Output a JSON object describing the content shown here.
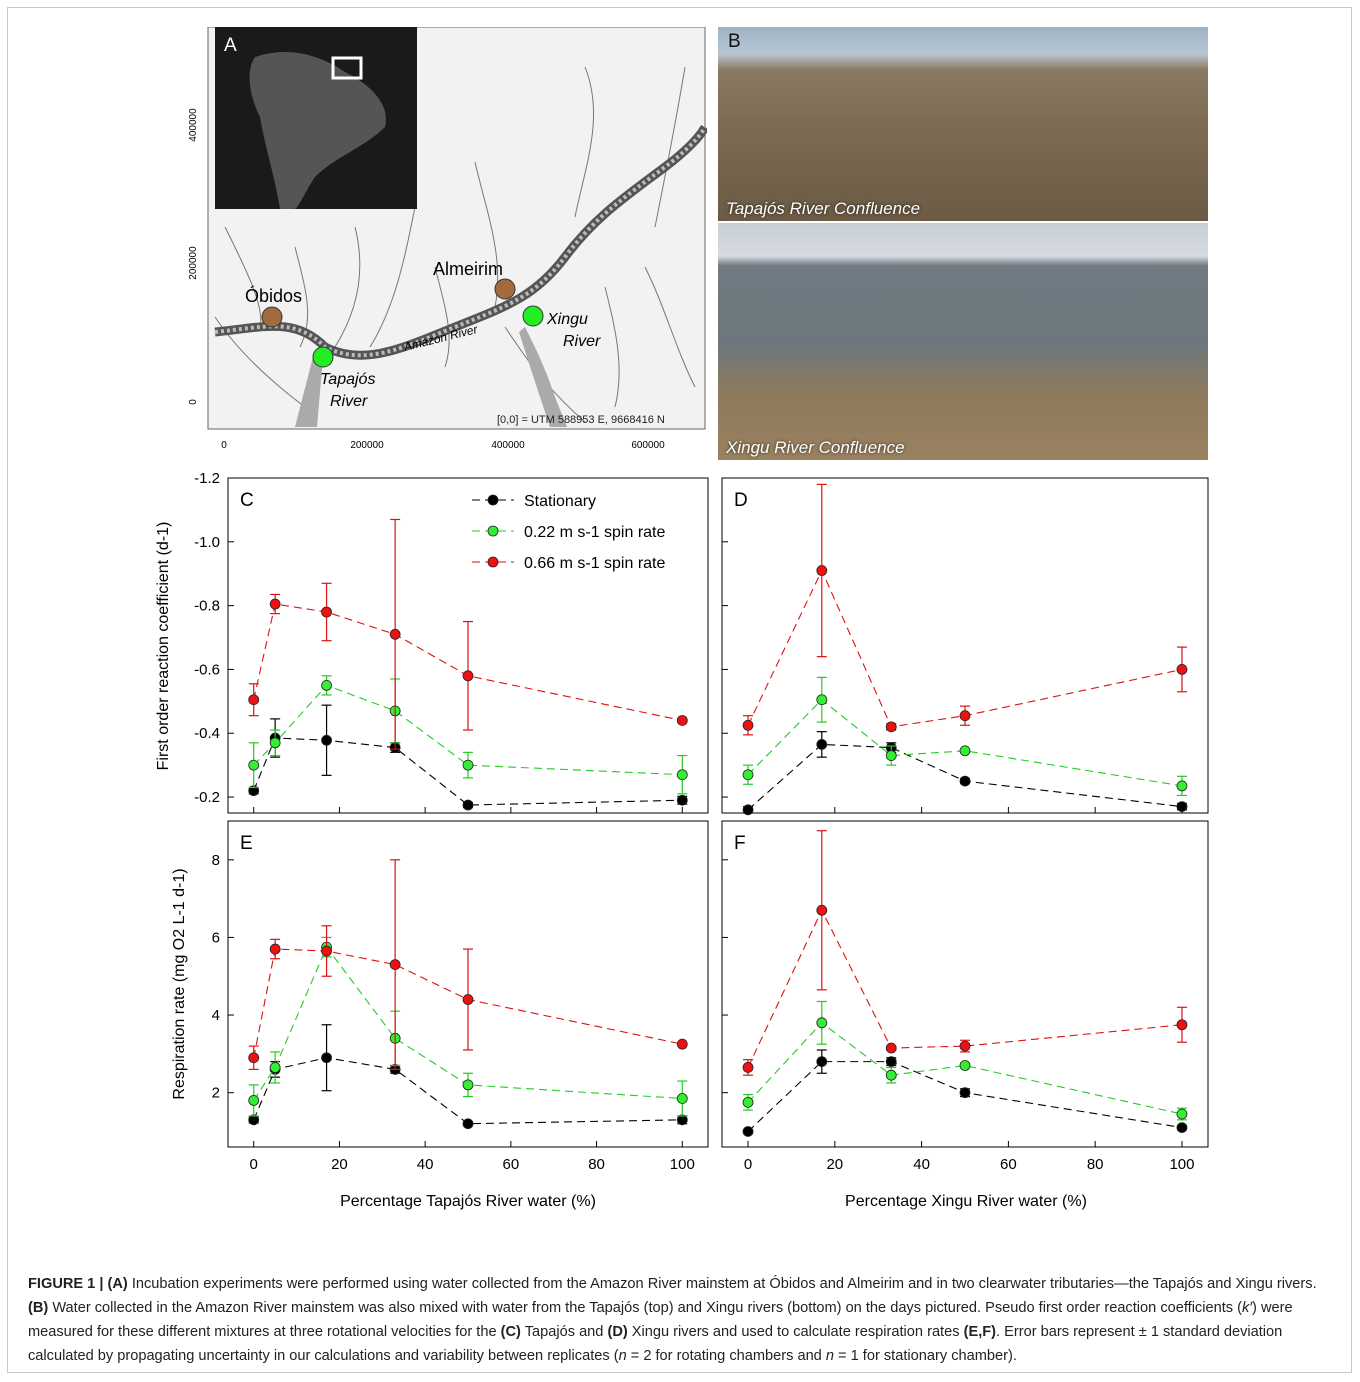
{
  "map": {
    "panel_label": "A",
    "y_ticks": [
      "400000",
      "200000",
      "0"
    ],
    "x_ticks": [
      "0",
      "200000",
      "400000",
      "600000"
    ],
    "sites": [
      {
        "name": "Óbidos",
        "color": "#a26b3e"
      },
      {
        "name": "Almeirim",
        "color": "#a26b3e"
      },
      {
        "name": "Tapajós",
        "name2": "River",
        "color": "#22ee22"
      },
      {
        "name": "Xingu",
        "name2": "River",
        "color": "#22ee22"
      }
    ],
    "river_label": "Amazon River",
    "origin_note": "[0,0] = UTM 588953 E, 9668416 N"
  },
  "photos": {
    "panel_label": "B",
    "top_caption": "Tapajós River Confluence",
    "bottom_caption": "Xingu River Confluence"
  },
  "chart_data": [
    {
      "panel": "C",
      "type": "line",
      "ylabel": "First order reaction coefficient (d-1)",
      "yticks": [
        "-1.2",
        "-1.0",
        "-0.8",
        "-0.6",
        "-0.4",
        "-0.2"
      ],
      "ylim": [
        -0.15,
        -1.2
      ],
      "inverted": true,
      "x": [
        0,
        5,
        17,
        33,
        50,
        100
      ],
      "series": [
        {
          "name": "Stationary",
          "color": "#000000",
          "values": [
            -0.22,
            -0.385,
            -0.378,
            -0.355,
            -0.175,
            -0.19
          ],
          "err": [
            0.01,
            0.06,
            0.11,
            0.015,
            0.008,
            0.012
          ]
        },
        {
          "name": "0.22 m s-1 spin rate",
          "color": "#22cc22",
          "values": [
            -0.3,
            -0.37,
            -0.55,
            -0.47,
            -0.3,
            -0.27
          ],
          "err": [
            0.07,
            0.04,
            0.03,
            0.1,
            0.04,
            0.06
          ]
        },
        {
          "name": "0.66 m s-1 spin rate",
          "color": "#dd1111",
          "values": [
            -0.505,
            -0.805,
            -0.78,
            -0.71,
            -0.58,
            -0.44
          ],
          "err": [
            0.05,
            0.03,
            0.09,
            0.36,
            0.17,
            0.005
          ]
        }
      ]
    },
    {
      "panel": "D",
      "type": "line",
      "ylim": [
        -0.15,
        -1.2
      ],
      "inverted": true,
      "x": [
        0,
        17,
        33,
        50,
        100
      ],
      "series": [
        {
          "name": "Stationary",
          "color": "#000000",
          "values": [
            -0.16,
            -0.365,
            -0.355,
            -0.25,
            -0.17
          ],
          "err": [
            0.01,
            0.04,
            0.015,
            0.008,
            0.01
          ]
        },
        {
          "name": "0.22 m s-1 spin rate",
          "color": "#22cc22",
          "values": [
            -0.27,
            -0.505,
            -0.33,
            -0.345,
            -0.235
          ],
          "err": [
            0.03,
            0.07,
            0.03,
            0.005,
            0.03
          ]
        },
        {
          "name": "0.66 m s-1 spin rate",
          "color": "#dd1111",
          "values": [
            -0.425,
            -0.91,
            -0.42,
            -0.455,
            -0.6
          ],
          "err": [
            0.03,
            0.27,
            0.01,
            0.03,
            0.07
          ]
        }
      ]
    },
    {
      "panel": "E",
      "type": "line",
      "ylabel": "Respiration rate (mg O2 L-1 d-1)",
      "yticks": [
        "2",
        "4",
        "6",
        "8"
      ],
      "ylim": [
        0.6,
        9.0
      ],
      "x": [
        0,
        5,
        17,
        33,
        50,
        100
      ],
      "series": [
        {
          "name": "Stationary",
          "color": "#000000",
          "values": [
            1.3,
            2.6,
            2.9,
            2.6,
            1.2,
            1.3
          ],
          "err": [
            0.08,
            0.2,
            0.85,
            0.1,
            0.05,
            0.1
          ]
        },
        {
          "name": "0.22 m s-1 spin rate",
          "color": "#22cc22",
          "values": [
            1.8,
            2.65,
            5.75,
            3.4,
            2.2,
            1.85
          ],
          "err": [
            0.4,
            0.4,
            0.25,
            0.7,
            0.3,
            0.45
          ]
        },
        {
          "name": "0.66 m s-1 spin rate",
          "color": "#dd1111",
          "values": [
            2.9,
            5.7,
            5.65,
            5.3,
            4.4,
            3.25
          ],
          "err": [
            0.3,
            0.25,
            0.65,
            2.7,
            1.3,
            0.03
          ]
        }
      ]
    },
    {
      "panel": "F",
      "type": "line",
      "ylim": [
        0.6,
        9.0
      ],
      "x": [
        0,
        17,
        33,
        50,
        100
      ],
      "series": [
        {
          "name": "Stationary",
          "color": "#000000",
          "values": [
            1.0,
            2.8,
            2.8,
            2.0,
            1.1
          ],
          "err": [
            0.05,
            0.3,
            0.1,
            0.1,
            0.05
          ]
        },
        {
          "name": "0.22 m s-1 spin rate",
          "color": "#22cc22",
          "values": [
            1.75,
            3.8,
            2.45,
            2.7,
            1.45
          ],
          "err": [
            0.2,
            0.55,
            0.2,
            0.05,
            0.15
          ]
        },
        {
          "name": "0.66 m s-1 spin rate",
          "color": "#dd1111",
          "values": [
            2.65,
            6.7,
            3.15,
            3.2,
            3.75
          ],
          "err": [
            0.2,
            2.05,
            0.05,
            0.15,
            0.45
          ]
        }
      ]
    }
  ],
  "axes": {
    "xticks": [
      "0",
      "20",
      "40",
      "60",
      "80",
      "100"
    ],
    "xlabel_left": "Percentage Tapajós River water (%)",
    "xlabel_right": "Percentage Xingu River water (%)"
  },
  "legend": {
    "items": [
      {
        "label": "Stationary",
        "color": "#000000"
      },
      {
        "label": "0.22 m s-1 spin rate",
        "color": "#22cc22"
      },
      {
        "label": "0.66 m s-1 spin rate",
        "color": "#dd1111"
      }
    ]
  },
  "caption": {
    "prefix": "FIGURE 1 | ",
    "A": "(A)",
    "text_a": " Incubation experiments were performed using water collected from the Amazon River mainstem at Óbidos and Almeirim and in two clearwater tributaries—the Tapajós and Xingu rivers. ",
    "B": "(B)",
    "text_b": " Water collected in the Amazon River mainstem was also mixed with water from the Tapajós (top) and Xingu rivers (bottom) on the days pictured. Pseudo first order reaction coefficients (",
    "k": "k′",
    "text_c": ") were measured for these different mixtures at three rotational velocities for the ",
    "C": "(C)",
    "text_d": " Tapajós and ",
    "D": "(D)",
    "text_e": " Xingu rivers and used to calculate respiration rates ",
    "EF": "(E,F)",
    "text_f": ". Error bars represent ± 1 standard deviation calculated by propagating uncertainty in our calculations and variability between replicates (",
    "n1": "n",
    "text_g": " = 2 for rotating chambers and ",
    "n2": "n",
    "text_h": " = 1 for stationary chamber)."
  }
}
